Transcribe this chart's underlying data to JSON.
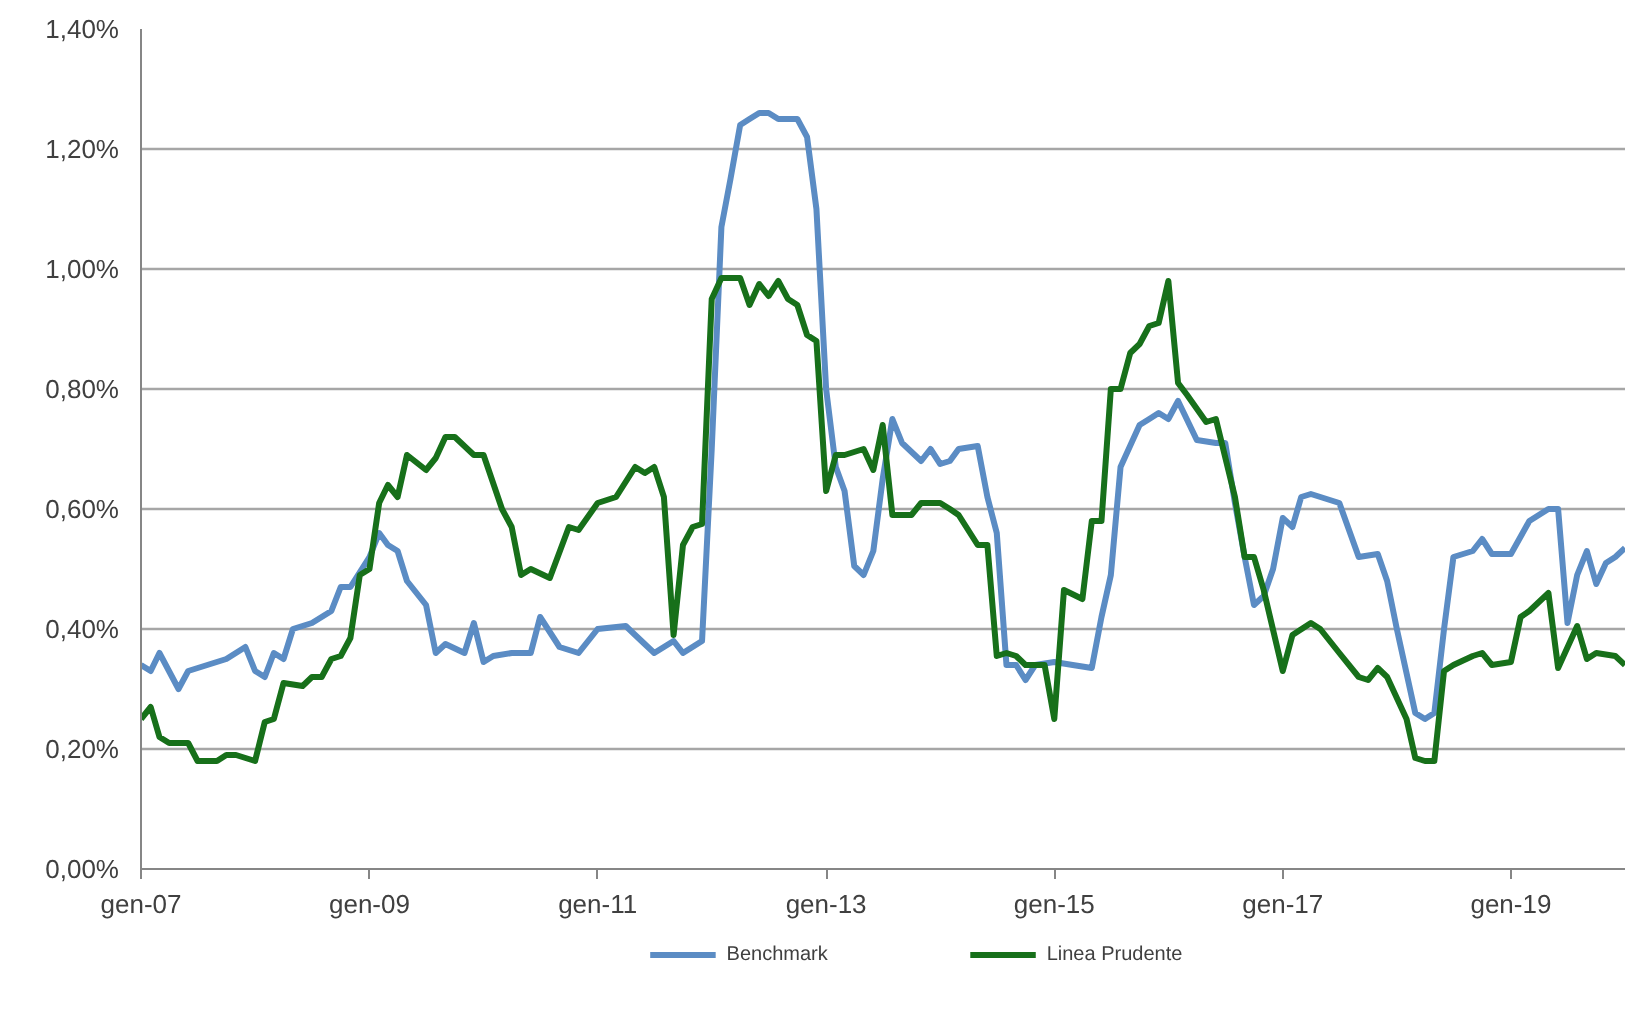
{
  "chart_data": {
    "type": "line",
    "xlim": [
      "2007-01",
      "2020-01"
    ],
    "xticks": [
      {
        "value": "2007-01",
        "label": "gen-07"
      },
      {
        "value": "2009-01",
        "label": "gen-09"
      },
      {
        "value": "2011-01",
        "label": "gen-11"
      },
      {
        "value": "2013-01",
        "label": "gen-13"
      },
      {
        "value": "2015-01",
        "label": "gen-15"
      },
      {
        "value": "2017-01",
        "label": "gen-17"
      },
      {
        "value": "2019-01",
        "label": "gen-19"
      }
    ],
    "ylim": [
      0,
      1.4
    ],
    "yticks": [
      {
        "value": 0,
        "label": "0,00%"
      },
      {
        "value": 0.2,
        "label": "0,20%"
      },
      {
        "value": 0.4,
        "label": "0,40%"
      },
      {
        "value": 0.6,
        "label": "0,60%"
      },
      {
        "value": 0.8,
        "label": "0,80%"
      },
      {
        "value": 1.0,
        "label": "1,00%"
      },
      {
        "value": 1.2,
        "label": "1,20%"
      },
      {
        "value": 1.4,
        "label": "1,40%"
      }
    ],
    "grid": "y",
    "legend": "bottom",
    "marker": "none",
    "line_style": "solid",
    "series": [
      {
        "name": "Benchmark",
        "color": "#5b8cc4",
        "x": [
          "2007-01",
          "2007-02",
          "2007-03",
          "2007-05",
          "2007-06",
          "2007-08",
          "2007-10",
          "2007-12",
          "2008-01",
          "2008-02",
          "2008-03",
          "2008-04",
          "2008-05",
          "2008-07",
          "2008-09",
          "2008-10",
          "2008-11",
          "2009-01",
          "2009-02",
          "2009-03",
          "2009-04",
          "2009-05",
          "2009-07",
          "2009-08",
          "2009-09",
          "2009-11",
          "2009-12",
          "2010-01",
          "2010-02",
          "2010-04",
          "2010-06",
          "2010-07",
          "2010-09",
          "2010-11",
          "2011-01",
          "2011-04",
          "2011-05",
          "2011-07",
          "2011-09",
          "2011-10",
          "2011-12",
          "2012-01",
          "2012-02",
          "2012-03",
          "2012-04",
          "2012-05",
          "2012-06",
          "2012-07",
          "2012-08",
          "2012-09",
          "2012-10",
          "2012-11",
          "2012-12",
          "2013-01",
          "2013-02",
          "2013-03",
          "2013-04",
          "2013-05",
          "2013-06",
          "2013-07",
          "2013-08",
          "2013-09",
          "2013-11",
          "2013-12",
          "2014-01",
          "2014-02",
          "2014-03",
          "2014-05",
          "2014-06",
          "2014-07",
          "2014-08",
          "2014-09",
          "2014-10",
          "2014-11",
          "2015-01",
          "2015-03",
          "2015-05",
          "2015-06",
          "2015-07",
          "2015-08",
          "2015-10",
          "2015-11",
          "2015-12",
          "2016-01",
          "2016-02",
          "2016-04",
          "2016-06",
          "2016-07",
          "2016-08",
          "2016-09",
          "2016-10",
          "2016-11",
          "2016-12",
          "2017-01",
          "2017-02",
          "2017-03",
          "2017-04",
          "2017-07",
          "2017-09",
          "2017-11",
          "2017-12",
          "2018-01",
          "2018-03",
          "2018-04",
          "2018-05",
          "2018-06",
          "2018-07",
          "2018-09",
          "2018-10",
          "2018-11",
          "2019-01",
          "2019-03",
          "2019-05",
          "2019-06",
          "2019-07",
          "2019-08",
          "2019-09",
          "2019-10",
          "2019-11",
          "2019-12",
          "2020-01"
        ],
        "values": [
          0.34,
          0.33,
          0.36,
          0.3,
          0.33,
          0.34,
          0.35,
          0.37,
          0.33,
          0.32,
          0.36,
          0.35,
          0.4,
          0.41,
          0.43,
          0.47,
          0.47,
          0.52,
          0.56,
          0.54,
          0.53,
          0.48,
          0.44,
          0.36,
          0.375,
          0.36,
          0.41,
          0.345,
          0.355,
          0.36,
          0.36,
          0.42,
          0.37,
          0.36,
          0.4,
          0.405,
          0.39,
          0.36,
          0.38,
          0.36,
          0.38,
          0.7,
          1.07,
          1.15,
          1.24,
          1.25,
          1.26,
          1.26,
          1.25,
          1.25,
          1.25,
          1.22,
          1.1,
          0.8,
          0.67,
          0.63,
          0.505,
          0.49,
          0.53,
          0.65,
          0.75,
          0.71,
          0.68,
          0.7,
          0.675,
          0.68,
          0.7,
          0.705,
          0.62,
          0.56,
          0.34,
          0.34,
          0.315,
          0.34,
          0.345,
          0.34,
          0.335,
          0.42,
          0.49,
          0.67,
          0.74,
          0.75,
          0.76,
          0.75,
          0.78,
          0.715,
          0.71,
          0.71,
          0.61,
          0.52,
          0.44,
          0.455,
          0.5,
          0.585,
          0.57,
          0.62,
          0.625,
          0.61,
          0.52,
          0.525,
          0.48,
          0.4,
          0.26,
          0.25,
          0.26,
          0.4,
          0.52,
          0.53,
          0.55,
          0.525,
          0.525,
          0.58,
          0.6,
          0.6,
          0.41,
          0.49,
          0.53,
          0.475,
          0.51,
          0.52,
          0.535
        ]
      },
      {
        "name": "Linea Prudente",
        "color": "#17701a",
        "x": [
          "2007-01",
          "2007-02",
          "2007-03",
          "2007-04",
          "2007-06",
          "2007-07",
          "2007-09",
          "2007-10",
          "2007-11",
          "2008-01",
          "2008-02",
          "2008-03",
          "2008-04",
          "2008-06",
          "2008-07",
          "2008-08",
          "2008-09",
          "2008-10",
          "2008-11",
          "2008-12",
          "2009-01",
          "2009-02",
          "2009-03",
          "2009-04",
          "2009-05",
          "2009-07",
          "2009-08",
          "2009-09",
          "2009-10",
          "2009-12",
          "2010-01",
          "2010-03",
          "2010-04",
          "2010-05",
          "2010-06",
          "2010-08",
          "2010-10",
          "2010-11",
          "2011-01",
          "2011-03",
          "2011-05",
          "2011-06",
          "2011-07",
          "2011-08",
          "2011-09",
          "2011-10",
          "2011-11",
          "2011-12",
          "2012-01",
          "2012-02",
          "2012-04",
          "2012-05",
          "2012-06",
          "2012-07",
          "2012-08",
          "2012-09",
          "2012-10",
          "2012-11",
          "2012-12",
          "2013-01",
          "2013-02",
          "2013-03",
          "2013-05",
          "2013-06",
          "2013-07",
          "2013-08",
          "2013-10",
          "2013-11",
          "2014-01",
          "2014-02",
          "2014-03",
          "2014-05",
          "2014-06",
          "2014-07",
          "2014-08",
          "2014-09",
          "2014-10",
          "2014-12",
          "2015-01",
          "2015-02",
          "2015-04",
          "2015-05",
          "2015-06",
          "2015-07",
          "2015-08",
          "2015-09",
          "2015-10",
          "2015-11",
          "2015-12",
          "2016-01",
          "2016-02",
          "2016-03",
          "2016-05",
          "2016-06",
          "2016-08",
          "2016-09",
          "2016-10",
          "2016-11",
          "2017-01",
          "2017-02",
          "2017-04",
          "2017-05",
          "2017-07",
          "2017-09",
          "2017-10",
          "2017-11",
          "2017-12",
          "2018-02",
          "2018-03",
          "2018-04",
          "2018-05",
          "2018-06",
          "2018-07",
          "2018-09",
          "2018-10",
          "2018-11",
          "2019-01",
          "2019-02",
          "2019-03",
          "2019-05",
          "2019-06",
          "2019-08",
          "2019-09",
          "2019-10",
          "2019-12",
          "2020-01"
        ],
        "values": [
          0.25,
          0.27,
          0.22,
          0.21,
          0.21,
          0.18,
          0.18,
          0.19,
          0.19,
          0.18,
          0.245,
          0.25,
          0.31,
          0.305,
          0.32,
          0.32,
          0.35,
          0.355,
          0.385,
          0.49,
          0.5,
          0.61,
          0.64,
          0.62,
          0.69,
          0.665,
          0.685,
          0.72,
          0.72,
          0.69,
          0.69,
          0.6,
          0.57,
          0.49,
          0.5,
          0.485,
          0.57,
          0.565,
          0.61,
          0.62,
          0.67,
          0.66,
          0.67,
          0.62,
          0.39,
          0.54,
          0.57,
          0.575,
          0.95,
          0.985,
          0.985,
          0.94,
          0.975,
          0.955,
          0.98,
          0.95,
          0.94,
          0.89,
          0.88,
          0.63,
          0.69,
          0.69,
          0.7,
          0.665,
          0.74,
          0.59,
          0.59,
          0.61,
          0.61,
          0.6,
          0.59,
          0.54,
          0.54,
          0.355,
          0.36,
          0.355,
          0.34,
          0.34,
          0.25,
          0.465,
          0.45,
          0.58,
          0.58,
          0.8,
          0.8,
          0.86,
          0.875,
          0.905,
          0.91,
          0.98,
          0.81,
          0.79,
          0.745,
          0.75,
          0.62,
          0.52,
          0.52,
          0.465,
          0.33,
          0.39,
          0.41,
          0.4,
          0.36,
          0.32,
          0.315,
          0.335,
          0.32,
          0.25,
          0.185,
          0.18,
          0.18,
          0.33,
          0.34,
          0.355,
          0.36,
          0.34,
          0.345,
          0.42,
          0.43,
          0.46,
          0.335,
          0.405,
          0.35,
          0.36,
          0.355,
          0.34
        ]
      }
    ]
  }
}
